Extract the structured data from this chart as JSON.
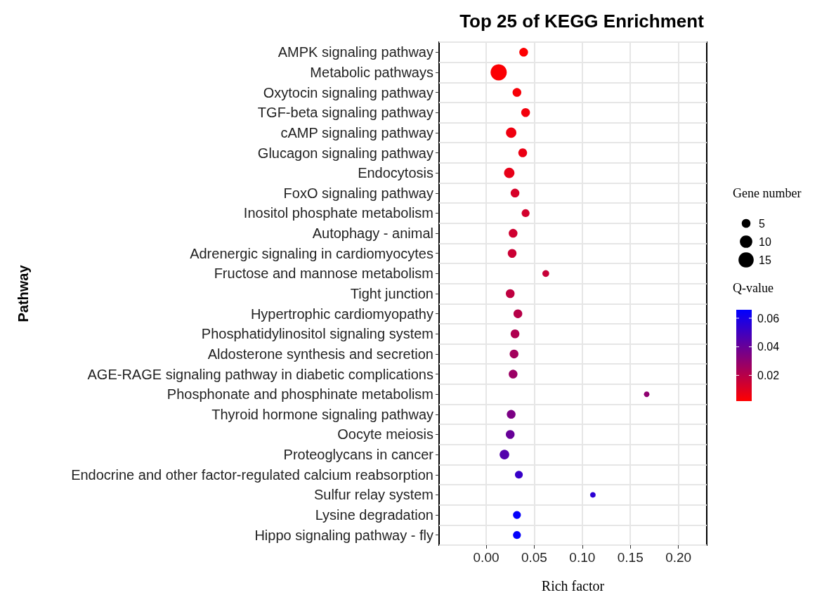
{
  "chart_data": {
    "type": "bubble",
    "title": "Top 25 of KEGG Enrichment",
    "xlabel": "Rich factor",
    "ylabel": "Pathway",
    "legend_title": "Gene number",
    "clabel": "Q-value",
    "categories": [
      "AMPK signaling pathway",
      "Metabolic pathways",
      "Oxytocin signaling pathway",
      "TGF-beta signaling pathway",
      "cAMP signaling pathway",
      "Glucagon signaling pathway",
      "Endocytosis",
      "FoxO signaling pathway",
      "Inositol phosphate metabolism",
      "Autophagy - animal",
      "Adrenergic signaling in cardiomyocytes",
      "Fructose and mannose metabolism",
      "Tight junction",
      "Hypertrophic cardiomyopathy",
      "Phosphatidylinositol signaling system",
      "Aldosterone synthesis and secretion",
      "AGE-RAGE signaling pathway in diabetic complications",
      "Phosphonate and phosphinate metabolism",
      "Thyroid hormone signaling pathway",
      "Oocyte meiosis",
      "Proteoglycans in cancer",
      "Endocrine and other factor-regulated calcium reabsorption",
      "Sulfur relay system",
      "Lysine degradation",
      "Hippo signaling pathway - fly"
    ],
    "values": [
      0.039,
      0.013,
      0.032,
      0.041,
      0.026,
      0.038,
      0.024,
      0.03,
      0.041,
      0.028,
      0.027,
      0.062,
      0.025,
      0.033,
      0.03,
      0.029,
      0.028,
      0.167,
      0.026,
      0.025,
      0.019,
      0.034,
      0.111,
      0.032,
      0.032
    ],
    "sizes": [
      5,
      17,
      5,
      5,
      7,
      5,
      7,
      5,
      4,
      5,
      5,
      3,
      5,
      5,
      5,
      5,
      5,
      2,
      5,
      5,
      6,
      4,
      2,
      4,
      4
    ],
    "size_legend": [
      5,
      10,
      15
    ],
    "cvalues": [
      0.0025,
      0.003,
      0.004,
      0.005,
      0.006,
      0.007,
      0.008,
      0.012,
      0.013,
      0.014,
      0.015,
      0.016,
      0.018,
      0.02,
      0.022,
      0.025,
      0.027,
      0.03,
      0.035,
      0.04,
      0.045,
      0.052,
      0.055,
      0.065,
      0.065
    ],
    "clim": [
      0.002,
      0.0659
    ],
    "cticks": [
      0.02,
      0.04,
      0.06
    ],
    "xlim": [
      -0.049,
      0.2295
    ],
    "xticks": [
      {
        "value": 0,
        "label": "0.00"
      },
      {
        "value": 0.05,
        "label": "0.05"
      },
      {
        "value": 0.1,
        "label": "0.10"
      },
      {
        "value": 0.15,
        "label": "0.15"
      },
      {
        "value": 0.2,
        "label": "0.20"
      }
    ],
    "grid": true,
    "orientation": "horizontal"
  }
}
